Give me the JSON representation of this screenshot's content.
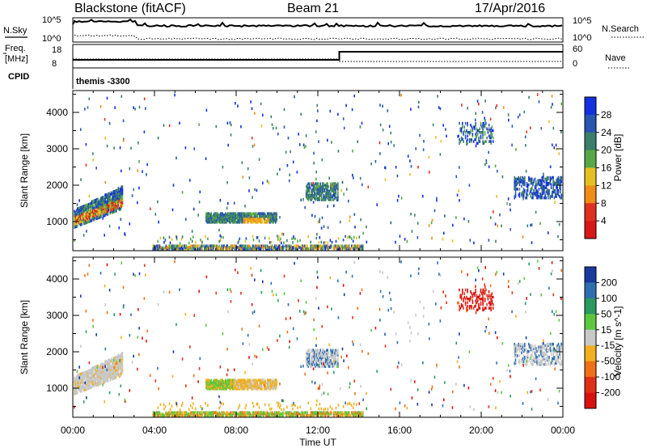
{
  "header": {
    "station": "Blackstone (fitACF)",
    "beam": "Beam 21",
    "date": "17/Apr/2016"
  },
  "panels": {
    "nsky": {
      "label": "N.Sky",
      "top_tick": "10^5",
      "bottom_tick": "10^0",
      "right_label": "N.Search",
      "right_top_tick": "10^5",
      "right_bottom_tick": "10^0"
    },
    "freq": {
      "label_line1": "Freq.",
      "label_line2": "[MHz]",
      "top_tick": "18",
      "bottom_tick": "8",
      "right_label": "Nave",
      "right_top_tick": "60",
      "right_bottom_tick": "0"
    },
    "cpid": {
      "label": "CPID",
      "value": "themis -3300"
    }
  },
  "chart_data": [
    {
      "type": "heatmap",
      "name": "power",
      "ylabel": "Slant Range [km]",
      "ylim": [
        200,
        4600
      ],
      "xlim": [
        0,
        24
      ],
      "yticks": [
        "1000",
        "2000",
        "3000",
        "4000"
      ],
      "colorbar": {
        "label": "Power [dB]",
        "ticks": [
          "4",
          "8",
          "12",
          "16",
          "20",
          "24",
          "28"
        ],
        "colors": [
          "#1430e0",
          "#2a55b0",
          "#3a7f6a",
          "#58a848",
          "#e6c020",
          "#f08c18",
          "#e03020",
          "#d81818"
        ]
      }
    },
    {
      "type": "heatmap",
      "name": "velocity",
      "ylabel": "Slant Range [km]",
      "ylim": [
        200,
        4600
      ],
      "xlim": [
        0,
        24
      ],
      "yticks": [
        "1000",
        "2000",
        "3000",
        "4000"
      ],
      "colorbar": {
        "label": "Velocity [m s^-1]",
        "ticks": [
          "200",
          "100",
          "50",
          "15",
          "-15",
          "-50",
          "-100",
          "-200"
        ],
        "colors": [
          "#1a3aa0",
          "#2f6fb0",
          "#2a9a60",
          "#5cc840",
          "#c8c8c8",
          "#f0b020",
          "#f07018",
          "#e03018",
          "#d81010"
        ]
      }
    }
  ],
  "xaxis": {
    "ticks": [
      "00:00",
      "04:00",
      "08:00",
      "12:00",
      "16:00",
      "20:00",
      "00:00"
    ],
    "label": "Time UT"
  }
}
